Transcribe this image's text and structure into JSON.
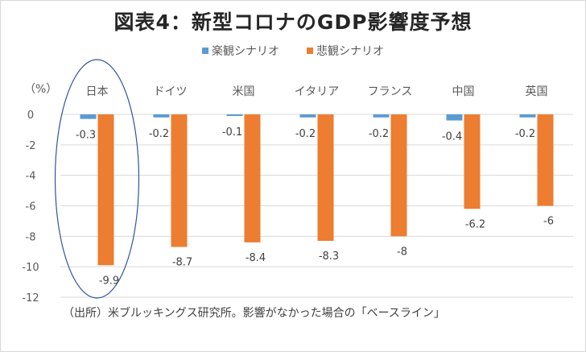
{
  "title": "図表4：新型コロナのGDP影響度予想",
  "unit_label": "（%）",
  "note": "（出所）米ブルッキングス研究所。影響がなかった場合の「ベースライン」",
  "colors": {
    "optimistic": "#5b9bd5",
    "pessimistic": "#ed7d31",
    "grid": "#d9d9d9",
    "axis_text": "#595959",
    "highlight_ellipse": "#2f5597"
  },
  "chart_data": {
    "type": "bar",
    "categories": [
      "日本",
      "ドイツ",
      "米国",
      "イタリア",
      "フランス",
      "中国",
      "英国"
    ],
    "series": [
      {
        "name": "楽観シナリオ",
        "values": [
          -0.3,
          -0.2,
          -0.1,
          -0.2,
          -0.2,
          -0.4,
          -0.2
        ]
      },
      {
        "name": "悲観シナリオ",
        "values": [
          -9.9,
          -8.7,
          -8.4,
          -8.3,
          -8,
          -6.2,
          -6
        ]
      }
    ],
    "ylim": [
      -12,
      0
    ],
    "yticks": [
      0,
      -2,
      -4,
      -6,
      -8,
      -10,
      -12
    ],
    "grid": true,
    "legend_position": "top",
    "highlighted_category": "日本"
  }
}
